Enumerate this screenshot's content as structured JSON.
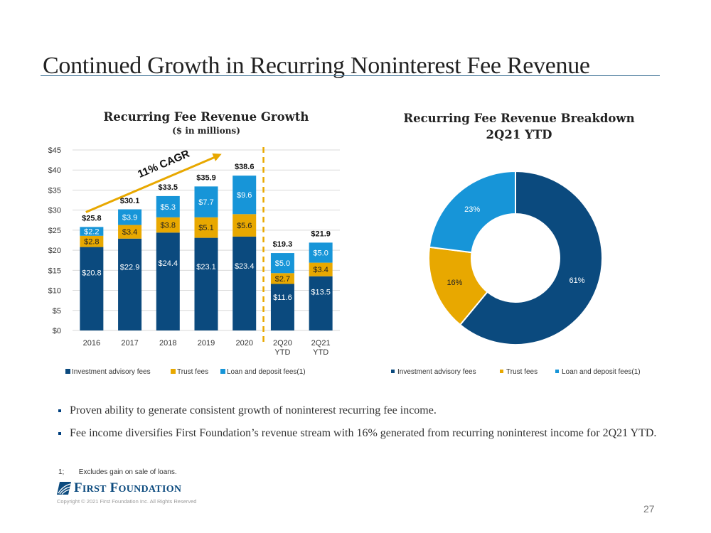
{
  "page": {
    "title": "Continued Growth in Recurring Noninterest Fee Revenue",
    "page_number": "27",
    "colors": {
      "investment": "#0b4a7e",
      "trust": "#e8a800",
      "loan": "#1795d8",
      "accent_line": "#4a7a9c",
      "cagr_arrow": "#e8a800"
    }
  },
  "chart_data": [
    {
      "type": "bar",
      "stacked": true,
      "title": "Recurring Fee Revenue Growth",
      "subtitle": "($ in millions)",
      "categories": [
        "2016",
        "2017",
        "2018",
        "2019",
        "2020",
        "2Q20\nYTD",
        "2Q21\nYTD"
      ],
      "category_lines": [
        [
          "2016"
        ],
        [
          "2017"
        ],
        [
          "2018"
        ],
        [
          "2019"
        ],
        [
          "2020"
        ],
        [
          "2Q20",
          "YTD"
        ],
        [
          "2Q21",
          "YTD"
        ]
      ],
      "series": [
        {
          "name": "Investment advisory fees",
          "values": [
            20.8,
            22.9,
            24.4,
            23.1,
            23.4,
            11.6,
            13.5
          ],
          "labels": [
            "$20.8",
            "$22.9",
            "$24.4",
            "$23.1",
            "$23.4",
            "$11.6",
            "$13.5"
          ]
        },
        {
          "name": "Trust fees",
          "values": [
            2.8,
            3.4,
            3.8,
            5.1,
            5.6,
            2.7,
            3.4
          ],
          "labels": [
            "$2.8",
            "$3.4",
            "$3.8",
            "$5.1",
            "$5.6",
            "$2.7",
            "$3.4"
          ]
        },
        {
          "name": "Loan and deposit fees(1)",
          "values": [
            2.2,
            3.9,
            5.3,
            7.7,
            9.6,
            5.0,
            5.0
          ],
          "labels": [
            "$2.2",
            "$3.9",
            "$5.3",
            "$7.7",
            "$9.6",
            "$5.0",
            "$5.0"
          ]
        }
      ],
      "totals": [
        25.8,
        30.1,
        33.5,
        35.9,
        38.6,
        19.3,
        21.9
      ],
      "total_labels": [
        "$25.8",
        "$30.1",
        "$33.5",
        "$35.9",
        "$38.6",
        "$19.3",
        "$21.9"
      ],
      "ylim": [
        0,
        45
      ],
      "yticks": [
        0,
        5,
        10,
        15,
        20,
        25,
        30,
        35,
        40,
        45
      ],
      "ytick_labels": [
        "$0",
        "$5",
        "$10",
        "$15",
        "$20",
        "$25",
        "$30",
        "$35",
        "$40",
        "$45"
      ],
      "grid": true,
      "annotation": "11% CAGR",
      "separator_after_category": 4,
      "legend": [
        "Investment advisory fees",
        "Trust fees",
        "Loan and deposit fees(1)"
      ],
      "legend_position": "bottom"
    },
    {
      "type": "pie",
      "donut": true,
      "title": "Recurring Fee Revenue Breakdown",
      "subtitle": "2Q21 YTD",
      "slices": [
        {
          "name": "Investment advisory fees",
          "value": 61,
          "label": "61%"
        },
        {
          "name": "Trust fees",
          "value": 16,
          "label": "16%"
        },
        {
          "name": "Loan and deposit fees(1)",
          "value": 23,
          "label": "23%"
        }
      ],
      "legend": [
        "Investment advisory fees",
        "Trust fees",
        "Loan and deposit fees(1)"
      ],
      "legend_position": "bottom"
    }
  ],
  "bullets": [
    "Proven ability to generate consistent growth of noninterest recurring fee income.",
    "Fee income diversifies First Foundation’s revenue stream with 16% generated from recurring noninterest income for 2Q21 YTD."
  ],
  "footnote": {
    "number": "1;",
    "text": "Excludes gain on sale of loans."
  },
  "logo": {
    "first": "F",
    "irst": "IRST",
    "found": "F",
    "oundation": "OUNDATION"
  },
  "copyright": "Copyright © 2021 First Foundation Inc. All Rights Reserved"
}
